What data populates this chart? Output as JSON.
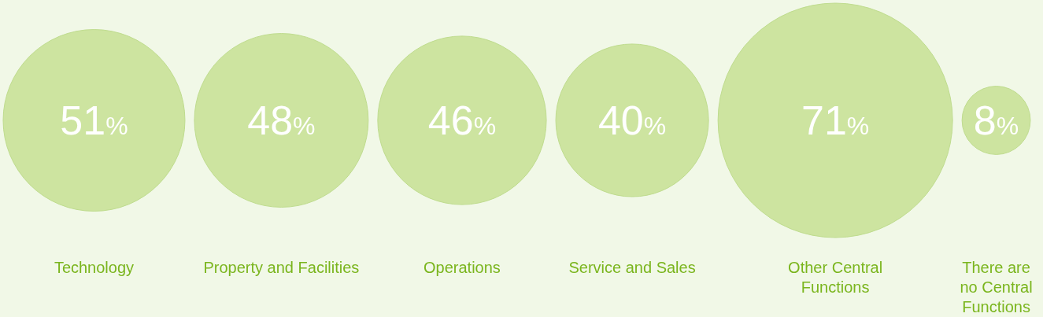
{
  "chart_data": {
    "type": "other",
    "categories": [
      "Technology",
      "Property and Facilities",
      "Operations",
      "Service and Sales",
      "Other Central\nFunctions",
      "There are\nno Central\nFunctions"
    ],
    "values": [
      51,
      48,
      46,
      40,
      71,
      8
    ],
    "value_labels": [
      "51%",
      "48%",
      "46%",
      "40%",
      "71%",
      "8%"
    ],
    "color": "#cde4a0"
  }
}
